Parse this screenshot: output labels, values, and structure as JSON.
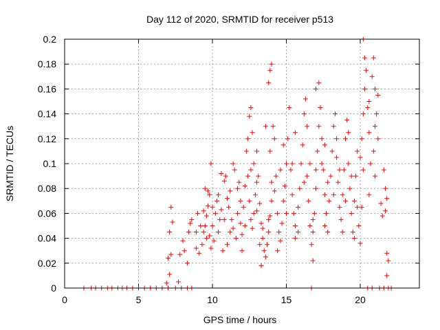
{
  "chart_data": {
    "type": "scatter",
    "title": "Day 112 of 2020, SRMTID for receiver p513",
    "xlabel": "GPS time / hours",
    "ylabel": "SRMTID / TECUs",
    "xlim": [
      0,
      24
    ],
    "ylim": [
      0,
      0.2
    ],
    "xticks": [
      0,
      5,
      10,
      15,
      20
    ],
    "xtick_labels": [
      "0",
      "5",
      "10",
      "15",
      "20"
    ],
    "yticks": [
      0,
      0.02,
      0.04,
      0.06,
      0.08,
      0.1,
      0.12,
      0.14,
      0.16,
      0.18,
      0.2
    ],
    "ytick_labels": [
      "0",
      "0.02",
      "0.04",
      "0.06",
      "0.08",
      "0.1",
      "0.12",
      "0.14",
      "0.16",
      "0.18",
      "0.2"
    ],
    "grid": true,
    "marker": "+",
    "color": "#ff0000",
    "series": [
      {
        "name": "SRMTID",
        "points": [
          [
            1.3,
            0
          ],
          [
            1.8,
            0
          ],
          [
            2.1,
            0
          ],
          [
            2.5,
            0
          ],
          [
            2.9,
            0
          ],
          [
            3.2,
            0
          ],
          [
            3.6,
            0
          ],
          [
            3.9,
            0
          ],
          [
            4.2,
            0
          ],
          [
            4.6,
            0
          ],
          [
            5.0,
            0
          ],
          [
            5.4,
            0
          ],
          [
            5.8,
            0
          ],
          [
            6.2,
            0
          ],
          [
            6.6,
            0
          ],
          [
            7.0,
            0
          ],
          [
            7.5,
            0
          ],
          [
            7.9,
            0
          ],
          [
            8.3,
            0
          ],
          [
            8.6,
            0
          ],
          [
            16.7,
            0
          ],
          [
            20.5,
            0
          ],
          [
            20.8,
            0
          ],
          [
            21.3,
            0
          ],
          [
            21.6,
            0
          ],
          [
            21.9,
            0
          ],
          [
            22.1,
            0
          ],
          [
            6.9,
            0.004
          ],
          [
            7.1,
            0.011
          ],
          [
            7.0,
            0.024
          ],
          [
            7.2,
            0.027
          ],
          [
            7.1,
            0.045
          ],
          [
            7.3,
            0.053
          ],
          [
            7.2,
            0.065
          ],
          [
            7.7,
            0.005
          ],
          [
            7.8,
            0.027
          ],
          [
            8.1,
            0.03
          ],
          [
            8.0,
            0.038
          ],
          [
            8.3,
            0.02
          ],
          [
            8.4,
            0.045
          ],
          [
            8.5,
            0.052
          ],
          [
            8.6,
            0.055
          ],
          [
            8.9,
            0.032
          ],
          [
            8.9,
            0.045
          ],
          [
            9.0,
            0.06
          ],
          [
            9.1,
            0.028
          ],
          [
            9.3,
            0.035
          ],
          [
            9.4,
            0.045
          ],
          [
            9.5,
            0.05
          ],
          [
            9.6,
            0.058
          ],
          [
            9.7,
            0.066
          ],
          [
            9.8,
            0.042
          ],
          [
            9.9,
            0.032
          ],
          [
            10.0,
            0.05
          ],
          [
            9.8,
            0.075
          ],
          [
            9.9,
            0.1
          ],
          [
            9.7,
            0.078
          ],
          [
            10.1,
            0.038
          ],
          [
            10.2,
            0.06
          ],
          [
            10.3,
            0.07
          ],
          [
            10.4,
            0.045
          ],
          [
            10.5,
            0.055
          ],
          [
            10.6,
            0.063
          ],
          [
            10.7,
            0.03
          ],
          [
            10.8,
            0.086
          ],
          [
            10.9,
            0.09
          ],
          [
            11.0,
            0.072
          ],
          [
            11.1,
            0.065
          ],
          [
            11.2,
            0.045
          ],
          [
            11.3,
            0.055
          ],
          [
            11.4,
            0.048
          ],
          [
            11.6,
            0.04
          ],
          [
            11.7,
            0.06
          ],
          [
            11.9,
            0.07
          ],
          [
            11.5,
            0.095
          ],
          [
            11.7,
            0.08
          ],
          [
            11.9,
            0.052
          ],
          [
            12.0,
            0.043
          ],
          [
            12.1,
            0.065
          ],
          [
            12.2,
            0.082
          ],
          [
            12.3,
            0.11
          ],
          [
            12.4,
            0.09
          ],
          [
            12.5,
            0.07
          ],
          [
            12.6,
            0.055
          ],
          [
            12.7,
            0.048
          ],
          [
            12.8,
            0.06
          ],
          [
            12.9,
            0.075
          ],
          [
            13.0,
            0.085
          ],
          [
            12.8,
            0.1
          ],
          [
            12.7,
            0.125
          ],
          [
            12.6,
            0.145
          ],
          [
            12.5,
            0.138
          ],
          [
            13.0,
            0.11
          ],
          [
            13.1,
            0.09
          ],
          [
            13.2,
            0.068
          ],
          [
            13.3,
            0.052
          ],
          [
            13.4,
            0.04
          ],
          [
            13.5,
            0.03
          ],
          [
            13.3,
            0.018
          ],
          [
            13.6,
            0.025
          ],
          [
            13.7,
            0.035
          ],
          [
            13.8,
            0.045
          ],
          [
            13.9,
            0.058
          ],
          [
            14.0,
            0.07
          ],
          [
            14.0,
            0.085
          ],
          [
            13.9,
            0.11
          ],
          [
            14.1,
            0.13
          ],
          [
            13.8,
            0.165
          ],
          [
            13.9,
            0.175
          ],
          [
            14.0,
            0.18
          ],
          [
            14.2,
            0.12
          ],
          [
            14.3,
            0.09
          ],
          [
            14.4,
            0.06
          ],
          [
            14.5,
            0.045
          ],
          [
            14.6,
            0.038
          ],
          [
            14.7,
            0.052
          ],
          [
            14.8,
            0.07
          ],
          [
            14.9,
            0.082
          ],
          [
            15.0,
            0.1
          ],
          [
            15.1,
            0.12
          ],
          [
            15.2,
            0.145
          ],
          [
            15.3,
            0.095
          ],
          [
            15.4,
            0.075
          ],
          [
            15.5,
            0.06
          ],
          [
            15.6,
            0.05
          ],
          [
            15.8,
            0.065
          ],
          [
            15.9,
            0.08
          ],
          [
            16.0,
            0.1
          ],
          [
            16.1,
            0.115
          ],
          [
            16.2,
            0.14
          ],
          [
            16.3,
            0.152
          ],
          [
            16.4,
            0.09
          ],
          [
            16.5,
            0.07
          ],
          [
            16.6,
            0.05
          ],
          [
            16.7,
            0.035
          ],
          [
            16.8,
            0.045
          ],
          [
            16.8,
            0.022
          ],
          [
            16.9,
            0.06
          ],
          [
            17.0,
            0.08
          ],
          [
            17.1,
            0.11
          ],
          [
            17.2,
            0.13
          ],
          [
            17.3,
            0.145
          ],
          [
            17.0,
            0.16
          ],
          [
            17.2,
            0.165
          ],
          [
            17.4,
            0.12
          ],
          [
            17.5,
            0.095
          ],
          [
            17.6,
            0.075
          ],
          [
            17.7,
            0.06
          ],
          [
            17.8,
            0.045
          ],
          [
            17.9,
            0.07
          ],
          [
            18.0,
            0.09
          ],
          [
            18.1,
            0.11
          ],
          [
            18.2,
            0.13
          ],
          [
            18.3,
            0.14
          ],
          [
            18.4,
            0.105
          ],
          [
            18.5,
            0.085
          ],
          [
            18.6,
            0.065
          ],
          [
            18.7,
            0.055
          ],
          [
            18.8,
            0.075
          ],
          [
            18.9,
            0.095
          ],
          [
            19.0,
            0.12
          ],
          [
            19.1,
            0.135
          ],
          [
            19.2,
            0.1
          ],
          [
            19.3,
            0.08
          ],
          [
            19.4,
            0.06
          ],
          [
            19.5,
            0.045
          ],
          [
            19.6,
            0.07
          ],
          [
            19.7,
            0.09
          ],
          [
            19.8,
            0.11
          ],
          [
            19.9,
            0.05
          ],
          [
            20.0,
            0.036
          ],
          [
            20.1,
            0.065
          ],
          [
            20.1,
            0.12
          ],
          [
            20.2,
            0.14
          ],
          [
            20.3,
            0.16
          ],
          [
            20.3,
            0.185
          ],
          [
            20.2,
            0.2
          ],
          [
            20.4,
            0.175
          ],
          [
            20.5,
            0.145
          ],
          [
            20.6,
            0.125
          ],
          [
            20.7,
            0.1
          ],
          [
            20.8,
            0.17
          ],
          [
            20.9,
            0.185
          ],
          [
            21.0,
            0.16
          ],
          [
            21.1,
            0.14
          ],
          [
            21.2,
            0.12
          ],
          [
            21.2,
            0.155
          ],
          [
            21.0,
            0.09
          ],
          [
            20.9,
            0.11
          ],
          [
            21.4,
            0.068
          ],
          [
            21.5,
            0.058
          ],
          [
            21.7,
            0.08
          ],
          [
            21.8,
            0.072
          ],
          [
            21.6,
            0.095
          ],
          [
            21.8,
            0.028
          ],
          [
            21.9,
            0.022
          ],
          [
            21.8,
            0.01
          ],
          [
            21.7,
            0.062
          ],
          [
            9.2,
            0.05
          ],
          [
            9.4,
            0.062
          ],
          [
            9.6,
            0.04
          ],
          [
            10.0,
            0.065
          ],
          [
            10.4,
            0.075
          ],
          [
            10.8,
            0.055
          ],
          [
            11.2,
            0.078
          ],
          [
            11.8,
            0.085
          ],
          [
            12.2,
            0.05
          ],
          [
            12.6,
            0.095
          ],
          [
            13.0,
            0.062
          ],
          [
            13.4,
            0.048
          ],
          [
            13.8,
            0.055
          ],
          [
            14.2,
            0.078
          ],
          [
            14.6,
            0.095
          ],
          [
            15.0,
            0.06
          ],
          [
            15.4,
            0.1
          ],
          [
            15.8,
            0.045
          ],
          [
            16.2,
            0.085
          ],
          [
            16.6,
            0.1
          ],
          [
            17.0,
            0.095
          ],
          [
            17.4,
            0.1
          ],
          [
            17.8,
            0.085
          ],
          [
            18.2,
            0.075
          ],
          [
            18.6,
            0.095
          ],
          [
            19.0,
            0.07
          ],
          [
            19.4,
            0.09
          ],
          [
            19.8,
            0.065
          ],
          [
            20.2,
            0.095
          ],
          [
            20.6,
            0.075
          ],
          [
            11.0,
            0.035
          ],
          [
            12.0,
            0.03
          ],
          [
            13.2,
            0.035
          ],
          [
            14.4,
            0.03
          ],
          [
            15.6,
            0.04
          ],
          [
            16.8,
            0.055
          ],
          [
            17.6,
            0.05
          ],
          [
            18.8,
            0.045
          ],
          [
            19.6,
            0.04
          ],
          [
            9.5,
            0.08
          ],
          [
            10.6,
            0.092
          ],
          [
            11.4,
            0.1
          ],
          [
            12.4,
            0.12
          ],
          [
            13.6,
            0.13
          ],
          [
            14.8,
            0.115
          ],
          [
            15.6,
            0.125
          ],
          [
            16.4,
            0.13
          ],
          [
            17.6,
            0.115
          ],
          [
            18.4,
            0.12
          ],
          [
            19.2,
            0.125
          ],
          [
            20.0,
            0.105
          ],
          [
            20.6,
            0.15
          ],
          [
            21.0,
            0.13
          ]
        ]
      }
    ]
  }
}
